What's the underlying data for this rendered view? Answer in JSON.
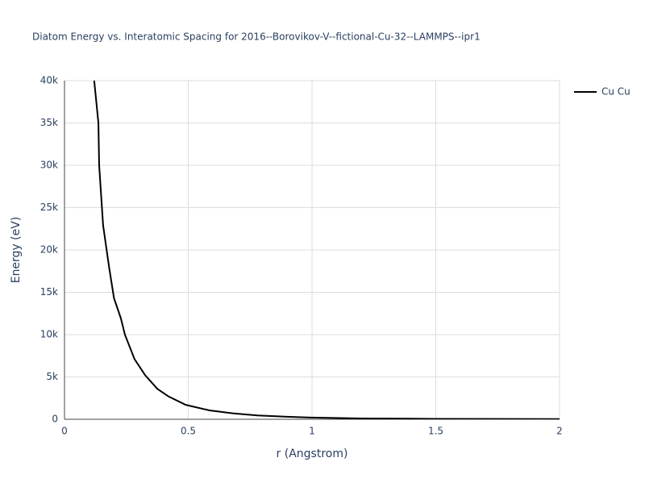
{
  "chart_data": {
    "type": "line",
    "title": "Diatom Energy vs. Interatomic Spacing for 2016--Borovikov-V--fictional-Cu-32--LAMMPS--ipr1",
    "x_label": "r (Angstrom)",
    "y_label": "Energy (eV)",
    "x": [
      0.12,
      0.137,
      0.14,
      0.156,
      0.18,
      0.2,
      0.228,
      0.244,
      0.283,
      0.326,
      0.375,
      0.42,
      0.49,
      0.586,
      0.68,
      0.78,
      0.9,
      1,
      1.2,
      1.5,
      2
    ],
    "series": [
      {
        "name": "Cu Cu",
        "color": "#000000",
        "values": [
          40000,
          35000,
          30000,
          22900,
          18000,
          14300,
          11900,
          10000,
          7100,
          5200,
          3600,
          2700,
          1700,
          1050,
          700,
          450,
          300,
          200,
          100,
          50,
          20
        ]
      }
    ],
    "xlim": [
      0,
      2
    ],
    "xticks": [
      0,
      0.5,
      1,
      1.5,
      2
    ],
    "ylim": [
      0,
      40000
    ],
    "yticks": [
      0,
      {
        "value": 5000,
        "label": "5k"
      },
      {
        "value": 10000,
        "label": "10k"
      },
      {
        "value": 15000,
        "label": "15k"
      },
      {
        "value": 20000,
        "label": "20k"
      },
      {
        "value": 25000,
        "label": "25k"
      },
      {
        "value": 30000,
        "label": "30k"
      },
      {
        "value": 35000,
        "label": "35k"
      },
      {
        "value": 40000,
        "label": "40k"
      }
    ],
    "grid": true
  }
}
